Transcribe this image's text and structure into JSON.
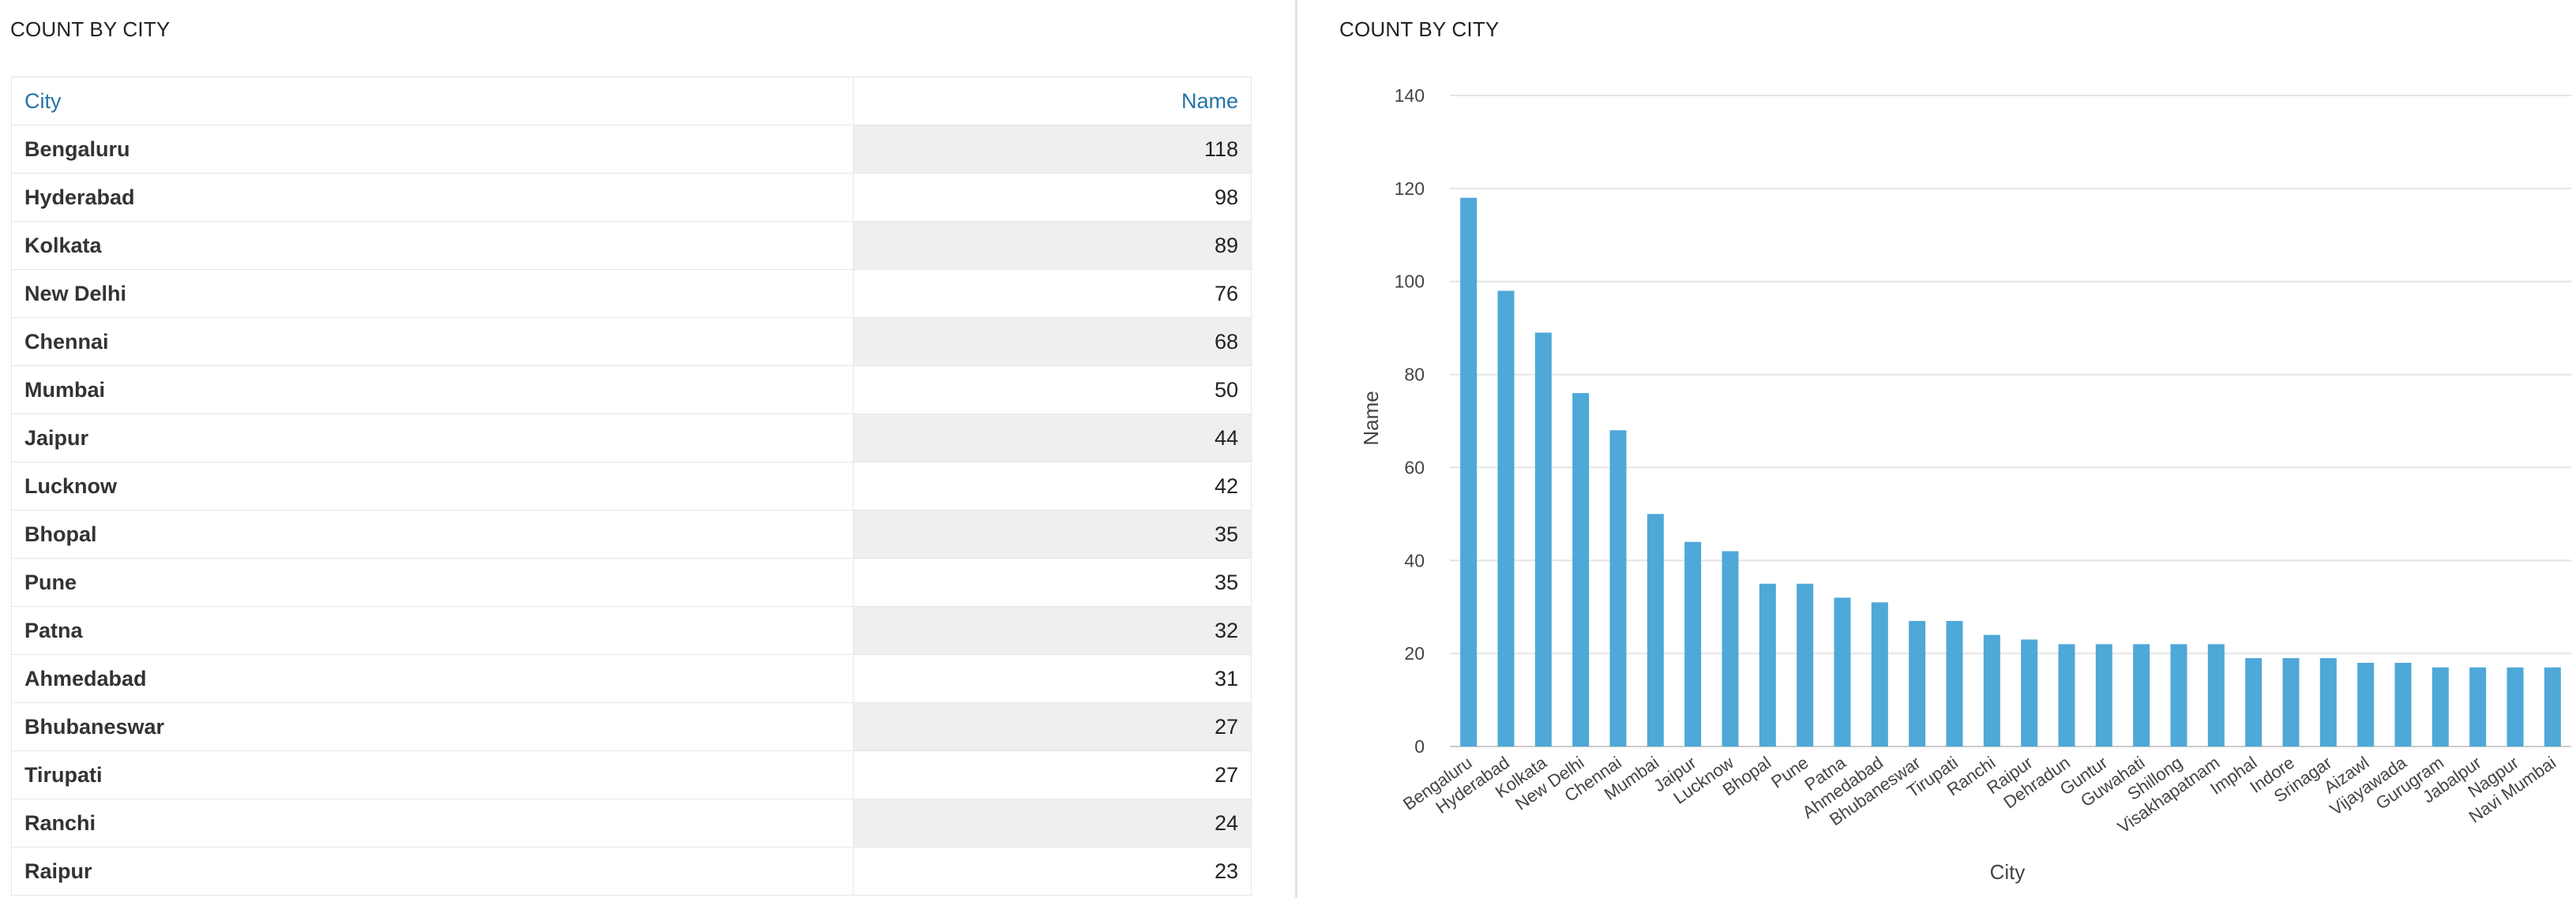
{
  "table_panel": {
    "title": "COUNT BY CITY",
    "columns": {
      "city": "City",
      "name": "Name"
    },
    "rows": [
      {
        "city": "Bengaluru",
        "value": "118"
      },
      {
        "city": "Hyderabad",
        "value": "98"
      },
      {
        "city": "Kolkata",
        "value": "89"
      },
      {
        "city": "New Delhi",
        "value": "76"
      },
      {
        "city": "Chennai",
        "value": "68"
      },
      {
        "city": "Mumbai",
        "value": "50"
      },
      {
        "city": "Jaipur",
        "value": "44"
      },
      {
        "city": "Lucknow",
        "value": "42"
      },
      {
        "city": "Bhopal",
        "value": "35"
      },
      {
        "city": "Pune",
        "value": "35"
      },
      {
        "city": "Patna",
        "value": "32"
      },
      {
        "city": "Ahmedabad",
        "value": "31"
      },
      {
        "city": "Bhubaneswar",
        "value": "27"
      },
      {
        "city": "Tirupati",
        "value": "27"
      },
      {
        "city": "Ranchi",
        "value": "24"
      },
      {
        "city": "Raipur",
        "value": "23"
      }
    ]
  },
  "chart_panel": {
    "title": "COUNT BY CITY"
  },
  "chart_data": {
    "type": "bar",
    "title": "COUNT BY CITY",
    "xlabel": "City",
    "ylabel": "Name",
    "ylim": [
      0,
      140
    ],
    "yticks": [
      0,
      20,
      40,
      60,
      80,
      100,
      120,
      140
    ],
    "grid": true,
    "bar_color": "#4ea8d8",
    "categories": [
      "Bengaluru",
      "Hyderabad",
      "Kolkata",
      "New Delhi",
      "Chennai",
      "Mumbai",
      "Jaipur",
      "Lucknow",
      "Bhopal",
      "Pune",
      "Patna",
      "Ahmedabad",
      "Bhubaneswar",
      "Tirupati",
      "Ranchi",
      "Raipur",
      "Dehradun",
      "Guntur",
      "Guwahati",
      "Shillong",
      "Visakhapatnam",
      "Imphal",
      "Indore",
      "Srinagar",
      "Aizawl",
      "Vijayawada",
      "Gurugram",
      "Jabalpur",
      "Nagpur",
      "Navi Mumbai"
    ],
    "values": [
      118,
      98,
      89,
      76,
      68,
      50,
      44,
      42,
      35,
      35,
      32,
      31,
      27,
      27,
      24,
      23,
      22,
      22,
      22,
      22,
      22,
      19,
      19,
      19,
      18,
      18,
      17,
      17,
      17,
      17
    ]
  }
}
